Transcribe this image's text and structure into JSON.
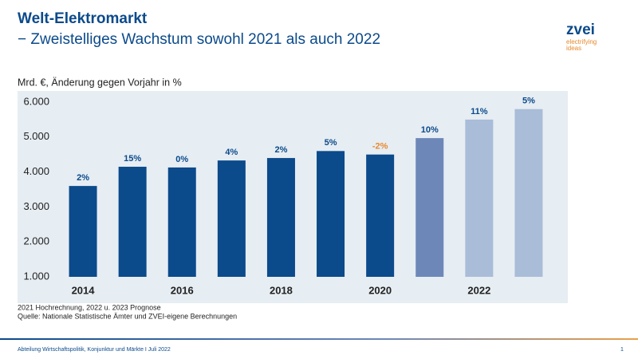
{
  "slide": {
    "title": "Welt-Elektromarkt",
    "subtitle": "− Zweistelliges Wachstum sowohl 2021 als auch 2022",
    "logo": {
      "name": "zvei",
      "line1": "electrifying",
      "line2": "ideas"
    },
    "footnotes": [
      "2021 Hochrechnung, 2022 u. 2023 Prognose",
      "Quelle: Nationale Statistische Ämter und ZVEI-eigene Berechnungen"
    ],
    "footer": "Abteilung Wirtschaftspolitik, Konjunktur und Märkte I Juli 2022",
    "page": "1"
  },
  "chart_data": {
    "type": "bar",
    "y_label": "Mrd. €, Änderung gegen Vorjahr in %",
    "categories": [
      "2014",
      null,
      "2016",
      null,
      "2018",
      null,
      "2020",
      null,
      "2022",
      null
    ],
    "values": [
      3600,
      4150,
      4130,
      4330,
      4400,
      4600,
      4500,
      4970,
      5500,
      5800
    ],
    "colors": [
      "#0b4a8b",
      "#0b4a8b",
      "#0b4a8b",
      "#0b4a8b",
      "#0b4a8b",
      "#0b4a8b",
      "#0b4a8b",
      "#6d87b8",
      "#a9bcd8",
      "#a9bcd8"
    ],
    "annotations": [
      {
        "value": 2,
        "label": "2%",
        "color": "#0b4a8b"
      },
      {
        "value": 15,
        "label": "15%",
        "color": "#0b4a8b"
      },
      {
        "value": 0,
        "label": "0%",
        "color": "#0b4a8b"
      },
      {
        "value": 4,
        "label": "4%",
        "color": "#0b4a8b"
      },
      {
        "value": 2,
        "label": "2%",
        "color": "#0b4a8b"
      },
      {
        "value": 5,
        "label": "5%",
        "color": "#0b4a8b"
      },
      {
        "value": -2,
        "label": "-2%",
        "color": "#e8892b"
      },
      {
        "value": 10,
        "label": "10%",
        "color": "#0b4a8b"
      },
      {
        "value": 11,
        "label": "11%",
        "color": "#0b4a8b"
      },
      {
        "value": 5,
        "label": "5%",
        "color": "#0b4a8b"
      }
    ],
    "ylim": [
      1000,
      6000
    ],
    "yticks": [
      {
        "value": 1000,
        "label": "1.000"
      },
      {
        "value": 2000,
        "label": "2.000"
      },
      {
        "value": 3000,
        "label": "3.000"
      },
      {
        "value": 4000,
        "label": "4.000"
      },
      {
        "value": 5000,
        "label": "5.000"
      },
      {
        "value": 6000,
        "label": "6.000"
      }
    ],
    "grid": false
  }
}
